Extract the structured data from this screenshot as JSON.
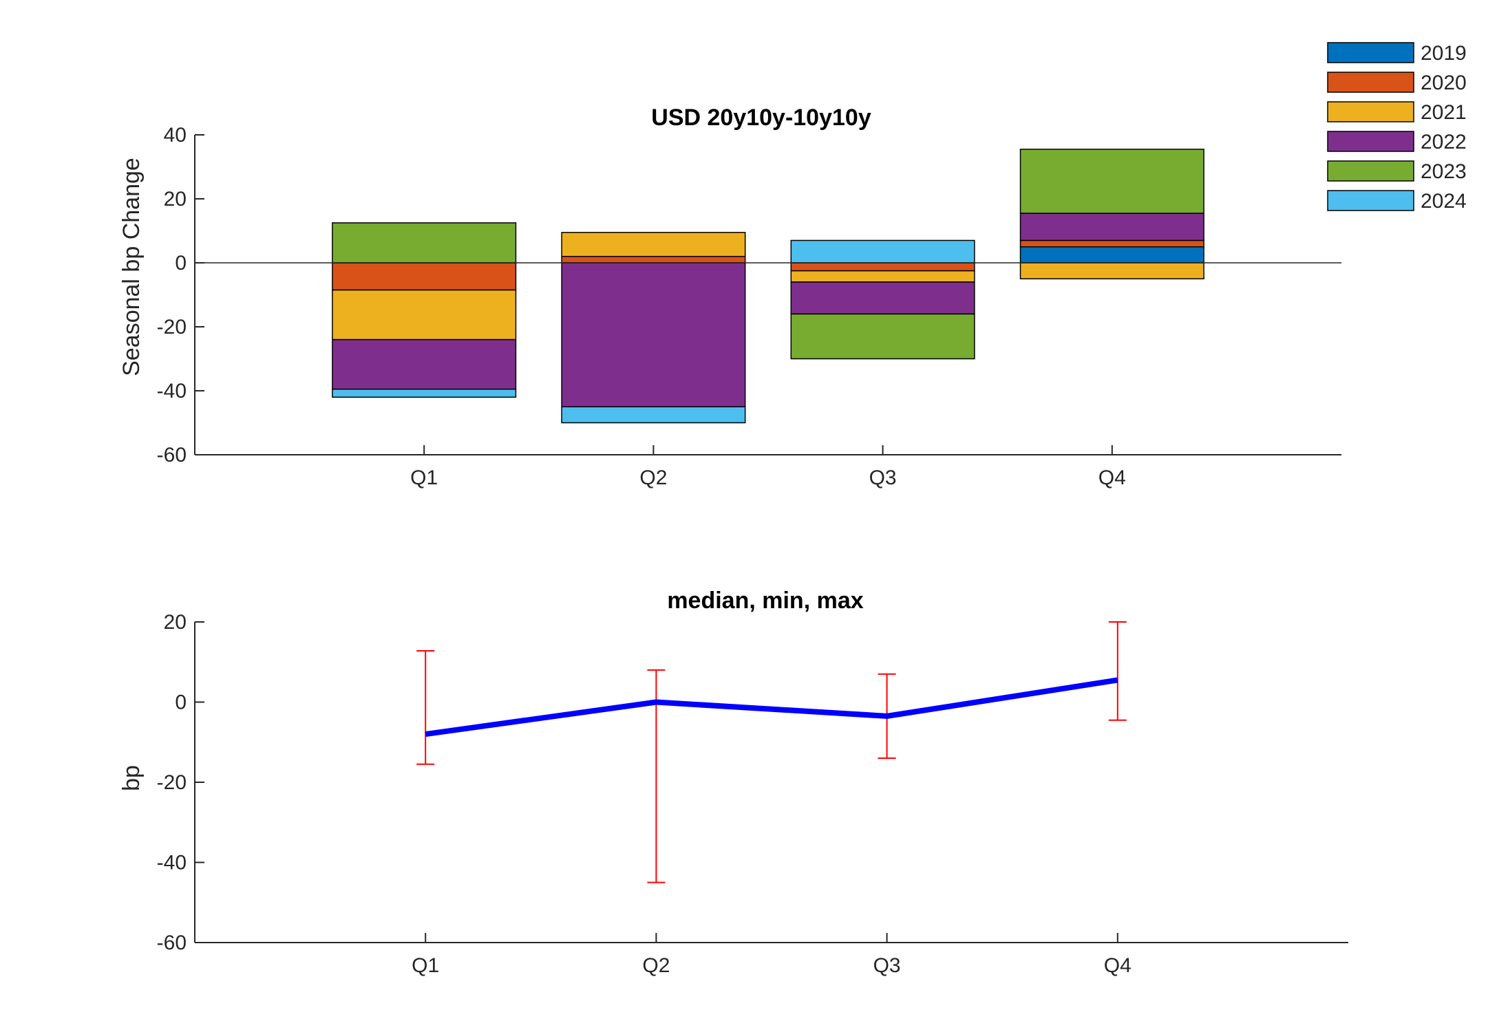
{
  "chart_data": [
    {
      "type": "bar",
      "stacked": true,
      "title": "USD 20y10y-10y10y",
      "xlabel": "",
      "ylabel": "Seasonal bp Change",
      "categories": [
        "Q1",
        "Q2",
        "Q3",
        "Q4"
      ],
      "xlim": [
        0,
        5
      ],
      "ylim": [
        -60,
        40
      ],
      "yticks": [
        "-60",
        "-40",
        "-20",
        "0",
        "20",
        "40"
      ],
      "grid": false,
      "legend_position": "top-right, outside",
      "series": [
        {
          "name": "2019",
          "color": "#0072BD",
          "values": [
            0,
            0,
            0,
            5
          ]
        },
        {
          "name": "2020",
          "color": "#D95319",
          "values": [
            -8.5,
            2,
            -2.5,
            2
          ]
        },
        {
          "name": "2021",
          "color": "#EDB120",
          "values": [
            -15.5,
            7.5,
            -3.5,
            -5
          ]
        },
        {
          "name": "2022",
          "color": "#7E2F8E",
          "values": [
            -15.5,
            -45,
            -10,
            8.5
          ]
        },
        {
          "name": "2023",
          "color": "#77AC30",
          "values": [
            12.5,
            0,
            -14,
            20
          ]
        },
        {
          "name": "2024",
          "color": "#4DBEEE",
          "values": [
            -2.5,
            -5,
            7,
            0
          ]
        }
      ]
    },
    {
      "type": "line",
      "title": "median, min, max",
      "xlabel": "",
      "ylabel": "bp",
      "categories": [
        "Q1",
        "Q2",
        "Q3",
        "Q4"
      ],
      "xlim": [
        0,
        5
      ],
      "ylim": [
        -60,
        20
      ],
      "yticks": [
        "-60",
        "-40",
        "-20",
        "0",
        "20"
      ],
      "grid": false,
      "line_color": "#0000FF",
      "errorbar_color": "#FF0000",
      "median": [
        -8,
        0,
        -3.5,
        5.5
      ],
      "min": [
        -15.5,
        -45,
        -14,
        -4.5
      ],
      "max": [
        12.8,
        8,
        7,
        20
      ]
    }
  ]
}
